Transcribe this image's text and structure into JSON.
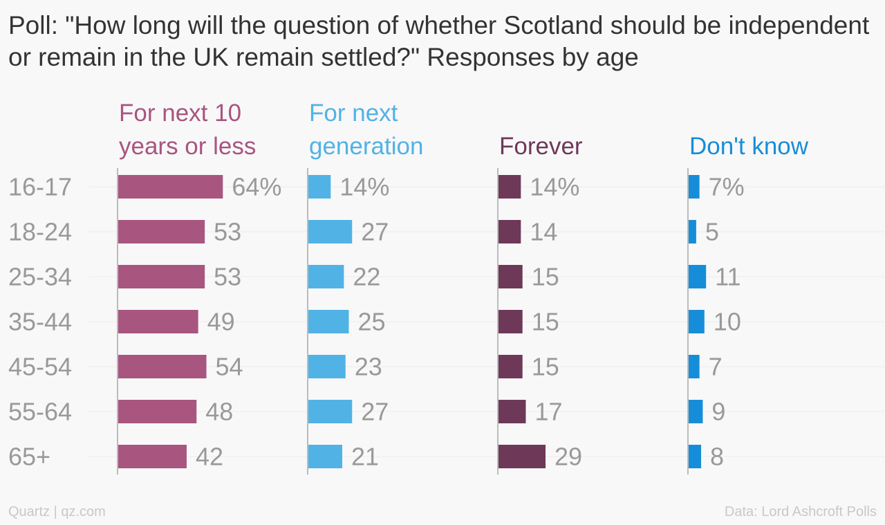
{
  "title": "Poll: \"How long will the question of whether Scotland should be independent or remain in the UK remain settled?\" Responses by age",
  "chart_data": {
    "type": "bar",
    "orientation": "horizontal",
    "categories": [
      "16-17",
      "18-24",
      "25-34",
      "35-44",
      "45-54",
      "55-64",
      "65+"
    ],
    "series": [
      {
        "name": "For next 10 years or less",
        "name_lines": [
          "For next 10",
          "years or less"
        ],
        "color": "#a8557f",
        "values": [
          64,
          53,
          53,
          49,
          54,
          48,
          42
        ]
      },
      {
        "name": "For next generation",
        "name_lines": [
          "For next",
          "generation"
        ],
        "color": "#51b2e5",
        "values": [
          14,
          27,
          22,
          25,
          23,
          27,
          21
        ]
      },
      {
        "name": "Forever",
        "name_lines": [
          "Forever"
        ],
        "color": "#6e3859",
        "values": [
          14,
          14,
          15,
          15,
          15,
          17,
          29
        ]
      },
      {
        "name": "Don't know",
        "name_lines": [
          "Don't know"
        ],
        "color": "#168dd9",
        "values": [
          7,
          5,
          11,
          10,
          7,
          9,
          8
        ]
      }
    ],
    "value_labels": [
      [
        "64%",
        "53",
        "53",
        "49",
        "54",
        "48",
        "42"
      ],
      [
        "14%",
        "27",
        "22",
        "25",
        "23",
        "27",
        "21"
      ],
      [
        "14%",
        "14",
        "15",
        "15",
        "15",
        "17",
        "29"
      ],
      [
        "7%",
        "5",
        "11",
        "10",
        "7",
        "9",
        "8"
      ]
    ],
    "grid": true,
    "label_color": "#999999",
    "grid_color": "#ebebeb",
    "axis_color": "#bbbbbb"
  },
  "footer": {
    "source_left": "Quartz | qz.com",
    "source_right": "Data: Lord Ashcroft Polls"
  }
}
